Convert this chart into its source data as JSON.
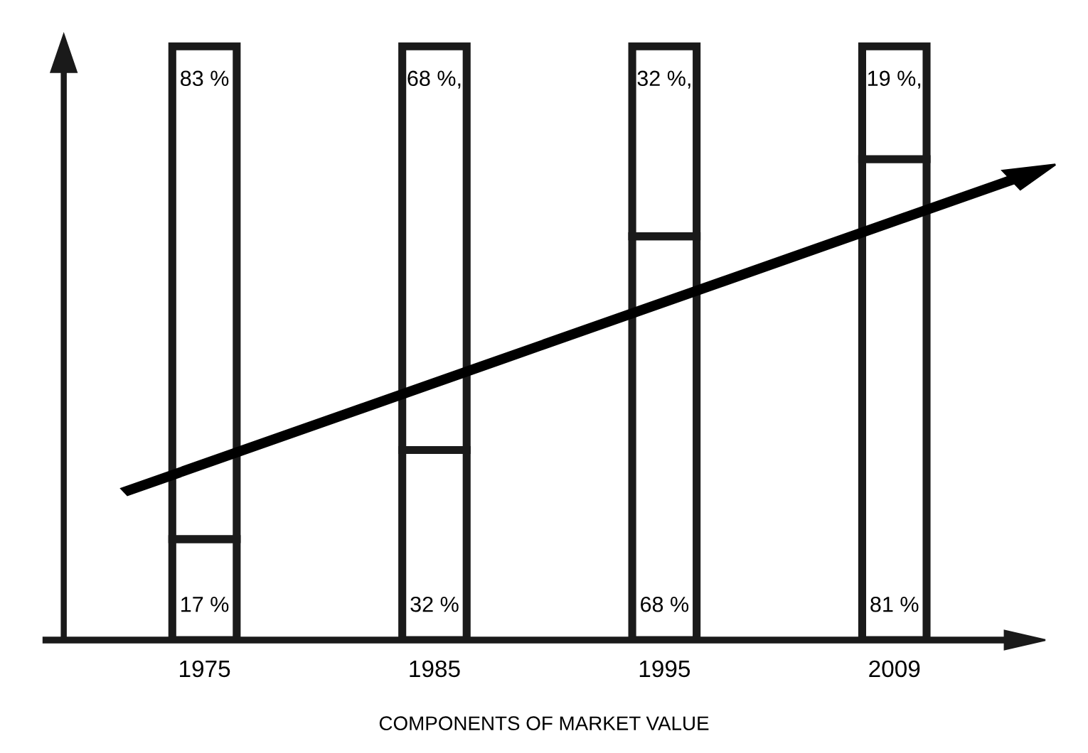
{
  "chart_data": {
    "type": "bar",
    "stacked": true,
    "title": "COMPONENTS OF MARKET VALUE",
    "categories": [
      "1975",
      "1985",
      "1995",
      "2009"
    ],
    "series": [
      {
        "color": "#1a1a1a",
        "values": [
          17,
          32,
          68,
          81
        ],
        "value_labels": [
          "17 %",
          "32 %",
          "68 %",
          "81 %"
        ]
      },
      {
        "color": "#1a1a1a",
        "values": [
          83,
          68,
          32,
          19
        ],
        "value_labels": [
          "83 %",
          "68 %,",
          "32 %,",
          "19 %,"
        ]
      }
    ],
    "grid": false,
    "legend": false
  }
}
